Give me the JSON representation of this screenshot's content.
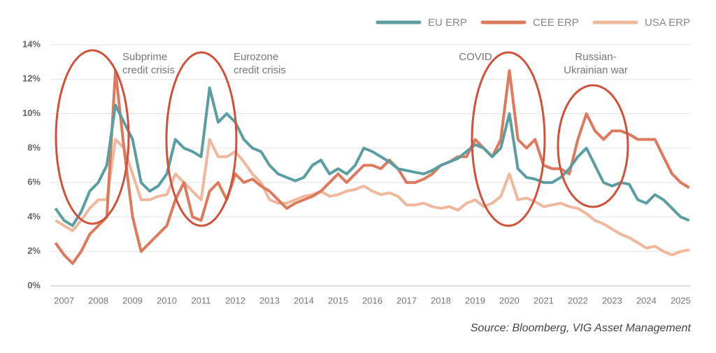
{
  "chart_data": {
    "type": "line",
    "source": "Source: Bloomberg, VIG Asset Management",
    "annotations": [
      {
        "lines": [
          "Subprime",
          "credit crisis"
        ]
      },
      {
        "lines": [
          "Eurozone",
          "credit crisis"
        ]
      },
      {
        "lines": [
          "COVID"
        ]
      },
      {
        "lines": [
          "Russian-",
          "Ukrainian war"
        ]
      }
    ],
    "xlim": [
      2006.6,
      2025.4
    ],
    "xticks": [
      2007,
      2008,
      2009,
      2010,
      2011,
      2012,
      2013,
      2014,
      2015,
      2016,
      2017,
      2018,
      2019,
      2020,
      2021,
      2022,
      2023,
      2024,
      2025
    ],
    "ylim": [
      0,
      14
    ],
    "yticks": [
      {
        "value": 0,
        "label": "0%"
      },
      {
        "value": 2,
        "label": "2%"
      },
      {
        "value": 4,
        "label": "4%"
      },
      {
        "value": 6,
        "label": "6%"
      },
      {
        "value": 8,
        "label": "8%"
      },
      {
        "value": 10,
        "label": "10%"
      },
      {
        "value": 12,
        "label": "12%"
      },
      {
        "value": 14,
        "label": "14%"
      }
    ],
    "grid": true,
    "legend": "top-right",
    "x": [
      2006.75,
      2007,
      2007.25,
      2007.5,
      2007.75,
      2008,
      2008.25,
      2008.5,
      2008.75,
      2009,
      2009.25,
      2009.5,
      2009.75,
      2010,
      2010.25,
      2010.5,
      2010.75,
      2011,
      2011.25,
      2011.5,
      2011.75,
      2012,
      2012.25,
      2012.5,
      2012.75,
      2013,
      2013.25,
      2013.5,
      2013.75,
      2014,
      2014.25,
      2014.5,
      2014.75,
      2015,
      2015.25,
      2015.5,
      2015.75,
      2016,
      2016.25,
      2016.5,
      2016.75,
      2017,
      2017.25,
      2017.5,
      2017.75,
      2018,
      2018.25,
      2018.5,
      2018.75,
      2019,
      2019.25,
      2019.5,
      2019.75,
      2020,
      2020.25,
      2020.5,
      2020.75,
      2021,
      2021.25,
      2021.5,
      2021.75,
      2022,
      2022.25,
      2022.5,
      2022.75,
      2023,
      2023.25,
      2023.5,
      2023.75,
      2024,
      2024.25,
      2024.5,
      2024.75,
      2025,
      2025.25
    ],
    "series": [
      {
        "name": "EU ERP",
        "color": "#5b9ea2",
        "values": [
          4.5,
          3.8,
          3.5,
          4.3,
          5.5,
          6.0,
          7.0,
          10.5,
          9.5,
          8.5,
          6.0,
          5.5,
          5.8,
          6.5,
          8.5,
          8.0,
          7.8,
          7.5,
          11.5,
          9.5,
          10.0,
          9.5,
          8.5,
          8.0,
          7.8,
          7.0,
          6.5,
          6.3,
          6.1,
          6.3,
          7.0,
          7.3,
          6.5,
          6.8,
          6.5,
          7.0,
          8.0,
          7.8,
          7.5,
          7.2,
          6.8,
          6.7,
          6.6,
          6.5,
          6.7,
          7.0,
          7.2,
          7.4,
          7.8,
          8.2,
          8.0,
          7.5,
          8.0,
          10.0,
          6.8,
          6.3,
          6.2,
          6.0,
          6.0,
          6.3,
          6.8,
          7.5,
          8.0,
          7.0,
          6.0,
          5.8,
          6.0,
          5.9,
          5.0,
          4.8,
          5.3,
          5.0,
          4.5,
          4.0,
          3.8
        ]
      },
      {
        "name": "CEE ERP",
        "color": "#dd7a5e",
        "values": [
          2.5,
          1.8,
          1.3,
          2.0,
          3.0,
          3.5,
          4.0,
          12.5,
          8.0,
          4.0,
          2.0,
          2.5,
          3.0,
          3.5,
          5.0,
          6.0,
          4.0,
          3.8,
          5.5,
          6.0,
          5.0,
          6.5,
          6.0,
          6.2,
          5.8,
          5.5,
          5.0,
          4.5,
          4.8,
          5.0,
          5.2,
          5.5,
          6.0,
          6.5,
          6.0,
          6.5,
          7.0,
          7.0,
          6.8,
          7.3,
          6.8,
          6.0,
          6.0,
          6.2,
          6.5,
          7.0,
          7.2,
          7.5,
          7.5,
          8.5,
          8.0,
          7.5,
          8.5,
          12.5,
          8.5,
          8.0,
          8.5,
          7.0,
          6.8,
          6.8,
          6.5,
          8.5,
          10.0,
          9.0,
          8.5,
          9.0,
          9.0,
          8.8,
          8.5,
          8.5,
          8.5,
          7.5,
          6.5,
          6.0,
          5.7
        ]
      },
      {
        "name": "USA ERP",
        "color": "#efb79b",
        "values": [
          3.8,
          3.5,
          3.2,
          3.8,
          4.5,
          5.0,
          5.0,
          8.5,
          8.0,
          6.5,
          5.0,
          5.0,
          5.2,
          5.3,
          6.5,
          6.0,
          5.5,
          5.0,
          8.5,
          7.5,
          7.5,
          7.8,
          7.2,
          6.5,
          6.0,
          5.0,
          4.8,
          4.8,
          5.0,
          5.2,
          5.3,
          5.5,
          5.2,
          5.3,
          5.5,
          5.6,
          5.8,
          5.5,
          5.3,
          5.4,
          5.2,
          4.7,
          4.7,
          4.8,
          4.6,
          4.5,
          4.6,
          4.4,
          4.8,
          5.0,
          4.6,
          4.8,
          5.2,
          6.5,
          5.0,
          5.1,
          4.9,
          4.6,
          4.7,
          4.8,
          4.6,
          4.5,
          4.2,
          3.8,
          3.6,
          3.3,
          3.0,
          2.8,
          2.5,
          2.2,
          2.3,
          2.0,
          1.8,
          2.0,
          2.1
        ]
      }
    ]
  }
}
